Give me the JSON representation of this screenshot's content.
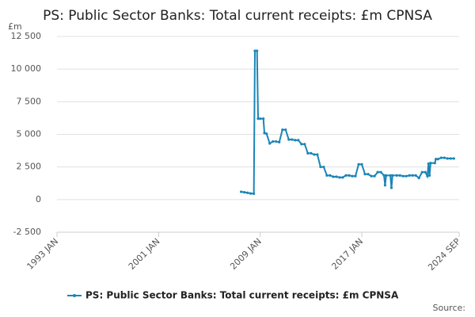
{
  "chart_data": {
    "type": "line",
    "title": "PS: Public Sector Banks: Total current receipts: £m CPNSA",
    "y_label": "£m",
    "source": "Source:",
    "x": [
      "2007 JUL",
      "2007 OCT",
      "2008 JAN",
      "2008 APR",
      "2008 JUL",
      "2008 AUG",
      "2008 OCT",
      "2008 NOV",
      "2009 JAN",
      "2009 APR",
      "2009 MAY",
      "2009 JUL",
      "2009 OCT",
      "2010 JAN",
      "2010 APR",
      "2010 JUL",
      "2010 OCT",
      "2011 JAN",
      "2011 APR",
      "2011 JUL",
      "2011 OCT",
      "2012 JAN",
      "2012 APR",
      "2012 JUL",
      "2012 OCT",
      "2013 JAN",
      "2013 APR",
      "2013 JUL",
      "2013 OCT",
      "2014 JAN",
      "2014 APR",
      "2014 JUL",
      "2014 OCT",
      "2015 JAN",
      "2015 APR",
      "2015 JUL",
      "2015 OCT",
      "2016 JAN",
      "2016 APR",
      "2016 JUL",
      "2016 OCT",
      "2017 JAN",
      "2017 APR",
      "2017 JUL",
      "2017 OCT",
      "2018 JAN",
      "2018 APR",
      "2018 JUL",
      "2018 OCT",
      "2018 NOV",
      "2018 DEC",
      "2019 APR",
      "2019 MAY",
      "2019 JUN",
      "2019 OCT",
      "2020 JAN",
      "2020 APR",
      "2020 JUL",
      "2020 OCT",
      "2021 JAN",
      "2021 APR",
      "2021 JUL",
      "2021 OCT",
      "2022 JAN",
      "2022 MAR",
      "2022 APR",
      "2022 MAY",
      "2022 JUN",
      "2022 OCT",
      "2022 NOV",
      "2023 JAN",
      "2023 APR",
      "2023 JUL",
      "2023 OCT",
      "2024 JAN",
      "2024 APR"
    ],
    "series": [
      {
        "name": "PS: Public Sector Banks: Total current receipts: £m CPNSA",
        "color": "#1b85b8",
        "values": [
          600,
          560,
          520,
          470,
          450,
          11400,
          11400,
          6200,
          6200,
          6200,
          5100,
          5050,
          4300,
          4450,
          4450,
          4400,
          5350,
          5350,
          4600,
          4600,
          4550,
          4550,
          4250,
          4250,
          3550,
          3550,
          3450,
          3450,
          2500,
          2500,
          1850,
          1850,
          1750,
          1750,
          1700,
          1700,
          1850,
          1850,
          1800,
          1800,
          2700,
          2700,
          1950,
          1950,
          1800,
          1800,
          2100,
          2100,
          1850,
          1100,
          1850,
          1850,
          900,
          1850,
          1850,
          1850,
          1800,
          1800,
          1850,
          1850,
          1850,
          1650,
          2100,
          2100,
          1800,
          2750,
          1850,
          2800,
          2800,
          3100,
          3100,
          3200,
          3200,
          3150,
          3150,
          3150
        ]
      }
    ],
    "xlim": [
      "1993 JAN",
      "2024 SEP"
    ],
    "xticks": [
      "1993 JAN",
      "2001 JAN",
      "2009 JAN",
      "2017 JAN",
      "2024 SEP"
    ],
    "ylim": [
      -2500,
      12500
    ],
    "yticks": [
      {
        "value": -2500,
        "label": "-2 500"
      },
      0,
      {
        "value": 2500,
        "label": "2 500"
      },
      {
        "value": 5000,
        "label": "5 000"
      },
      {
        "value": 7500,
        "label": "7 500"
      },
      {
        "value": 10000,
        "label": "10 000"
      },
      {
        "value": 12500,
        "label": "12 500"
      }
    ],
    "grid": true
  }
}
